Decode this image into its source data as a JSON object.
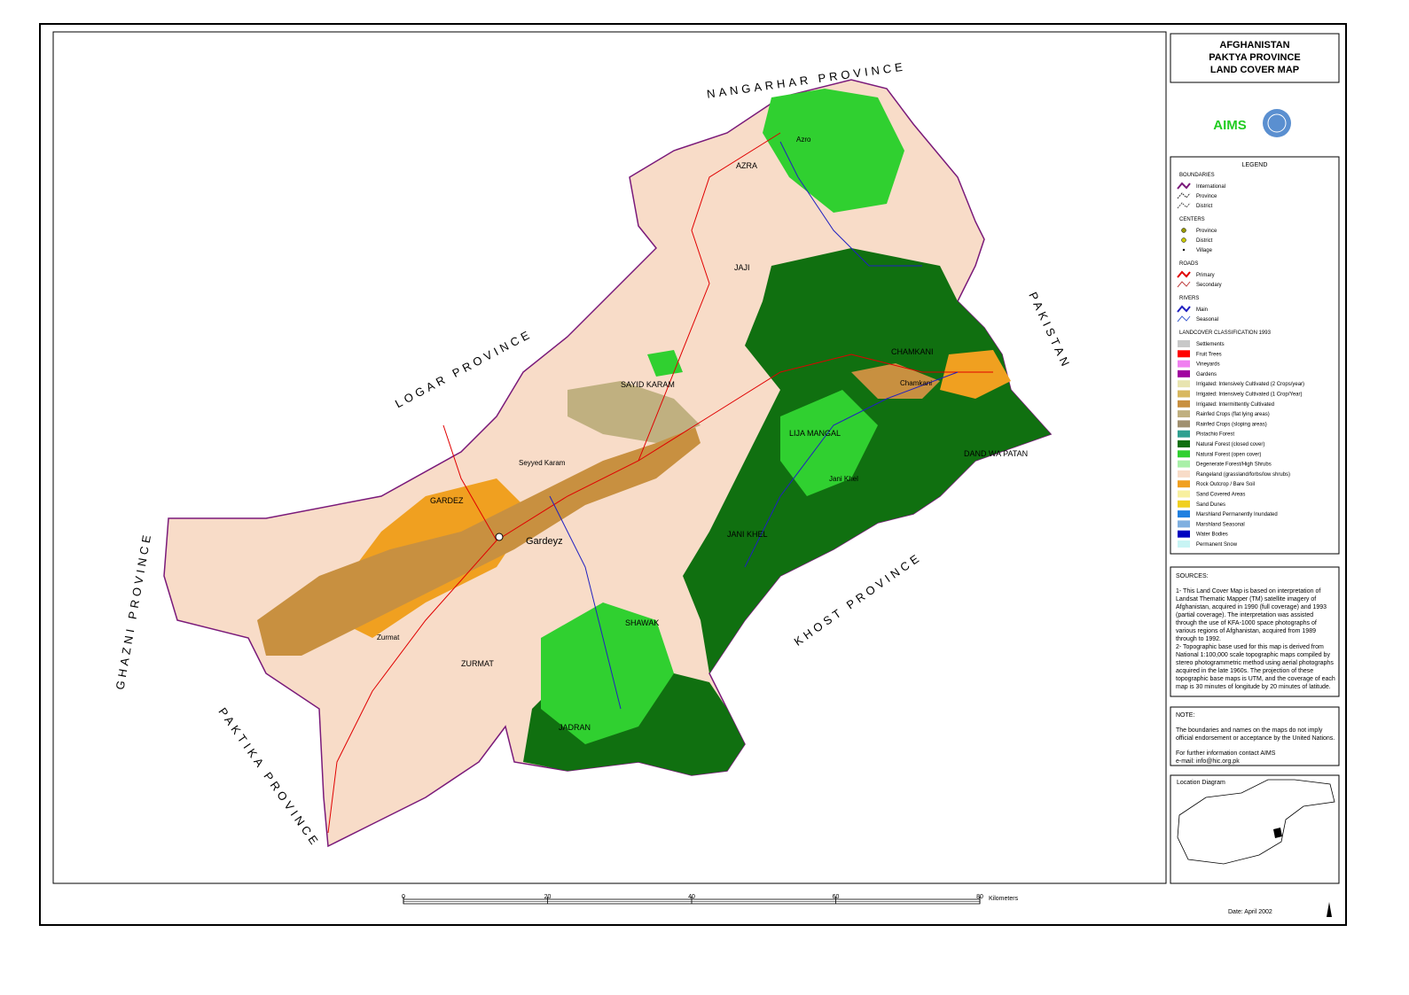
{
  "title": {
    "lines": [
      "AFGHANISTAN",
      "PAKTYA PROVINCE",
      "LAND COVER MAP"
    ]
  },
  "logo": "AIMS",
  "legend": {
    "title": "LEGEND",
    "sections": [
      {
        "heading": "BOUNDARIES",
        "items": [
          {
            "label": "International",
            "color": "#7a1a7a"
          },
          {
            "label": "Province",
            "color": "#333333"
          },
          {
            "label": "District",
            "color": "#555555"
          }
        ]
      },
      {
        "heading": "CENTERS",
        "items": [
          {
            "label": "Province",
            "color": "#9a9a00"
          },
          {
            "label": "District",
            "color": "#c8c800"
          },
          {
            "label": "Village",
            "color": "#000000"
          }
        ]
      },
      {
        "heading": "ROADS",
        "items": [
          {
            "label": "Primary",
            "color": "#e00000"
          },
          {
            "label": "Secondary",
            "color": "#c04040"
          }
        ]
      },
      {
        "heading": "RIVERS",
        "items": [
          {
            "label": "Main",
            "color": "#2020c0"
          },
          {
            "label": "Seasonal",
            "color": "#4060d0"
          }
        ]
      },
      {
        "heading": "LANDCOVER CLASSIFICATION 1993",
        "items": [
          {
            "label": "Settlements",
            "color": "#c8c8c8"
          },
          {
            "label": "Fruit Trees",
            "color": "#ff0000"
          },
          {
            "label": "Vineyards",
            "color": "#f080f0"
          },
          {
            "label": "Gardens",
            "color": "#a000a0"
          },
          {
            "label": "Irrigated: Intensively Cultivated (2 Crops/year)",
            "color": "#e8e4b0"
          },
          {
            "label": "Irrigated: Intensively Cultivated (1 Crop/Year)",
            "color": "#d8b860"
          },
          {
            "label": "Irrigated: Intermittently Cultivated",
            "color": "#c89040"
          },
          {
            "label": "Rainfed Crops (flat lying areas)",
            "color": "#c0b080"
          },
          {
            "label": "Rainfed Crops (sloping areas)",
            "color": "#a09070"
          },
          {
            "label": "Pistachio Forest",
            "color": "#30a090"
          },
          {
            "label": "Natural Forest (closed cover)",
            "color": "#107010"
          },
          {
            "label": "Natural Forest (open cover)",
            "color": "#30d030"
          },
          {
            "label": "Degenerate Forest/High Shrubs",
            "color": "#a8f0a8"
          },
          {
            "label": "Rangeland (grassland/forbs/low shrubs)",
            "color": "#f8dcc8"
          },
          {
            "label": "Rock Outcrop / Bare Soil",
            "color": "#f0a020"
          },
          {
            "label": "Sand Covered Areas",
            "color": "#f8f0a0"
          },
          {
            "label": "Sand Dunes",
            "color": "#f0d020"
          },
          {
            "label": "Marshland Permanently Inundated",
            "color": "#2080e0"
          },
          {
            "label": "Marshland Seasonal",
            "color": "#80b0e0"
          },
          {
            "label": "Water Bodies",
            "color": "#0000c0"
          },
          {
            "label": "Permanent Snow",
            "color": "#c8f4f4"
          }
        ]
      }
    ]
  },
  "sources": {
    "heading": "SOURCES:",
    "paragraphs": [
      "1- This Land Cover Map is based on interpretation of Landsat Thematic Mapper (TM) satellite imagery of Afghanistan, acquired in 1990 (full coverage) and 1993 (partial coverage). The interpretation was assisted through the use of KFA-1000 space photographs of various regions of Afghanistan, acquired from 1989 through to 1992.",
      "2- Topographic base used for this map is derived from National 1:100,000 scale topographic maps compiled by stereo photogrammetric method using aerial photographs acquired in the late 1960s. The projection of these topographic base maps is UTM, and the coverage of each map is 30 minutes of longitude by 20 minutes of latitude."
    ]
  },
  "note": {
    "heading": "NOTE:",
    "paragraphs": [
      "The boundaries and names on the maps do not imply official endorsement or acceptance by the United Nations.",
      "For further information contact AIMS",
      "e-mail: info@hic.org.pk"
    ]
  },
  "location_diagram": "Location Diagram",
  "map": {
    "provinces": [
      "NANGARHAR PROVINCE",
      "LOGAR PROVINCE",
      "PAKISTAN",
      "KHOST PROVINCE",
      "PAKTIKA PROVINCE",
      "GHAZNI PROVINCE"
    ],
    "districts": [
      "AZRA",
      "JAJI",
      "SAYID KARAM",
      "CHAMKANI",
      "LIJA MANGAL",
      "DAND WA PATAN",
      "GARDEZ",
      "ZURMAT",
      "JANI KHEL",
      "SHAWAK",
      "JADRAN"
    ],
    "places": [
      "Gardeyz",
      "Seyyed Karam",
      "Chamkani",
      "Zurmat",
      "Jani Khel",
      "Azro"
    ]
  },
  "scale": {
    "ticks": [
      0,
      20,
      40,
      60,
      80
    ],
    "unit": "Kilometers"
  },
  "date": "Date: April 2002"
}
